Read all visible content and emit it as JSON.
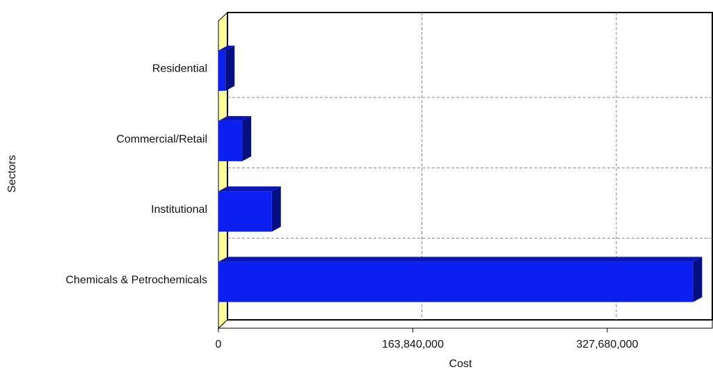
{
  "chart_data": {
    "type": "bar",
    "orientation": "horizontal",
    "categories": [
      "Residential",
      "Commercial/Retail",
      "Institutional",
      "Chemicals & Petrochemicals"
    ],
    "values": [
      6000000,
      20000000,
      45000000,
      400000000
    ],
    "xlabel": "Cost",
    "ylabel": "Sectors",
    "x_ticks": [
      "0",
      "163,840,000",
      "327,680,000"
    ],
    "x_tick_values": [
      0,
      163840000,
      327680000
    ],
    "xlim": [
      0,
      425000000
    ],
    "grid": true,
    "legend": "none",
    "colors": {
      "bar_face": "#0a1ff0",
      "bar_side": "#050f80",
      "bar_top": "#0b16b8",
      "floor": "#ffff9a",
      "grid": "#888888",
      "axis": "#000000"
    }
  }
}
